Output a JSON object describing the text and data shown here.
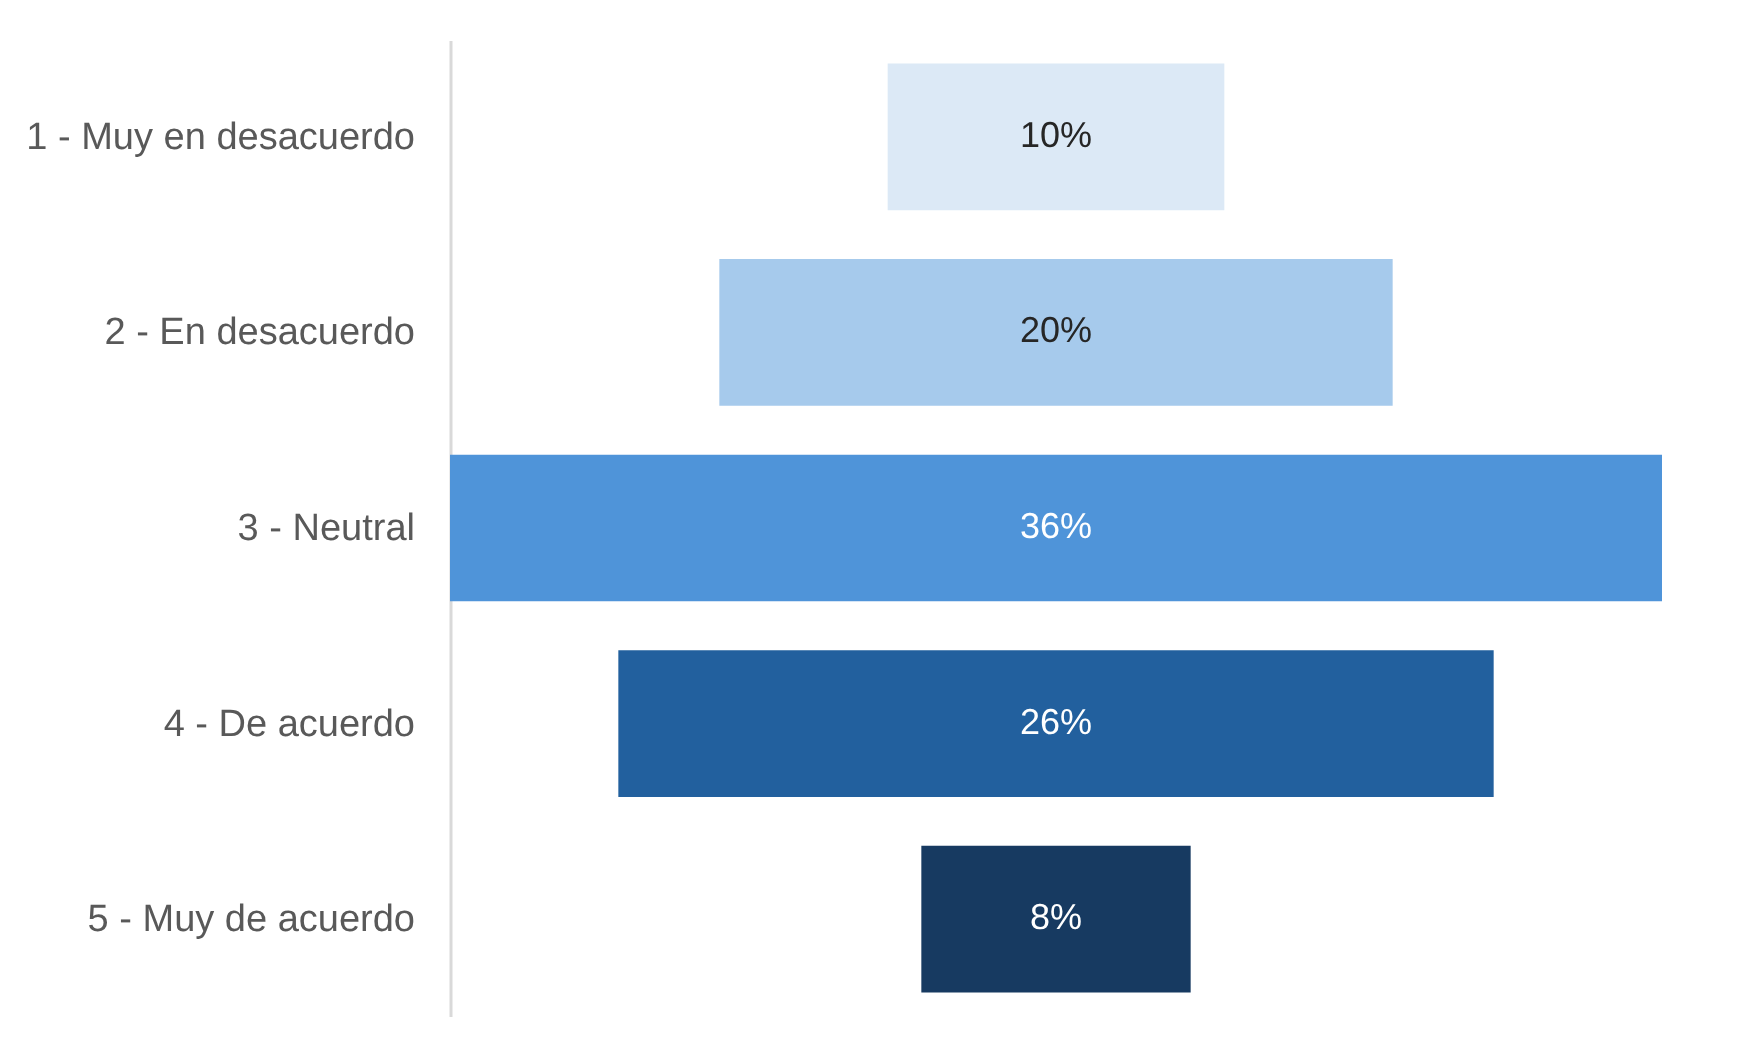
{
  "chart_data": {
    "type": "other",
    "categories": [
      "1 - Muy en desacuerdo",
      "2 - En desacuerdo",
      "3 - Neutral",
      "4 - De acuerdo",
      "5 - Muy de acuerdo"
    ],
    "values": [
      10,
      20,
      36,
      26,
      8
    ],
    "colors": [
      "#dce9f6",
      "#a6caec",
      "#4f94d9",
      "#22609e",
      "#173a61"
    ],
    "value_labels": [
      "10%",
      "20%",
      "36%",
      "26%",
      "8%"
    ]
  }
}
